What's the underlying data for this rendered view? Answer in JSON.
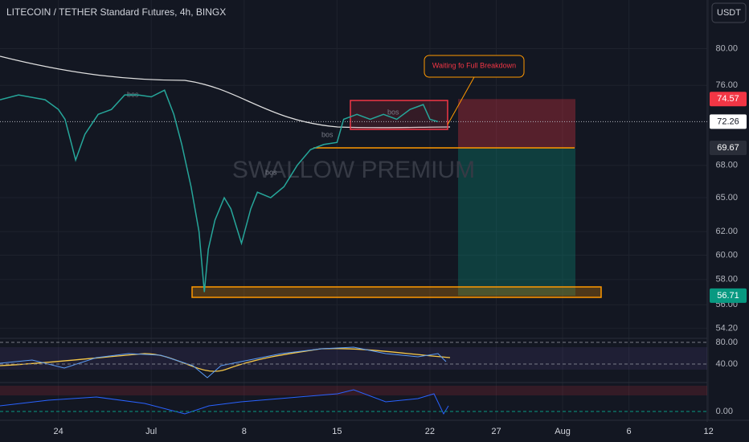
{
  "header": {
    "title": "LITECOIN / TETHER Standard Futures, 4h, BINGX",
    "currency": "USDT"
  },
  "chart_data": {
    "type": "line",
    "log_scale": true,
    "color": "#26a69a",
    "x": [
      -4.4,
      -3,
      -1,
      0,
      0.5,
      1,
      1.3,
      2,
      3,
      4,
      5,
      6,
      7,
      8,
      8.7,
      9.3,
      10,
      10.6,
      11,
      11.3,
      11.8,
      12.5,
      13,
      13.8,
      14.5,
      15,
      16,
      17,
      18,
      19,
      20,
      21,
      21.5,
      22.5,
      23.5,
      24.5,
      25.5,
      26.5,
      27.5,
      28,
      28.6
    ],
    "values": [
      74.5,
      75,
      74.5,
      73.5,
      72.5,
      70,
      68.5,
      71,
      73,
      73.5,
      75,
      75,
      74.8,
      75.5,
      73,
      70,
      66,
      62,
      57,
      60.5,
      63,
      65,
      64,
      61,
      64,
      65.5,
      65,
      66,
      68,
      69.5,
      70,
      70.2,
      72.5,
      73,
      72.5,
      73,
      72.5,
      73.5,
      74,
      72.5,
      72.26
    ],
    "xlim": [
      -4.4,
      48.9
    ],
    "ylim": [
      53.5,
      85.6
    ],
    "xticks": [
      {
        "value": 0,
        "label": "24"
      },
      {
        "value": 7,
        "label": "Jul"
      },
      {
        "value": 14,
        "label": "8"
      },
      {
        "value": 21,
        "label": "15"
      },
      {
        "value": 28,
        "label": "22"
      },
      {
        "value": 33,
        "label": "27"
      },
      {
        "value": 38,
        "label": "Aug"
      },
      {
        "value": 43,
        "label": "6"
      },
      {
        "value": 49,
        "label": "12"
      }
    ],
    "yticks": [
      {
        "value": 80,
        "label": "80.00"
      },
      {
        "value": 76,
        "label": "76.00"
      },
      {
        "value": 68,
        "label": "68.00"
      },
      {
        "value": 65,
        "label": "65.00"
      },
      {
        "value": 62,
        "label": "62.00"
      },
      {
        "value": 60,
        "label": "60.00"
      },
      {
        "value": 58,
        "label": "58.00"
      },
      {
        "value": 56,
        "label": "56.00"
      },
      {
        "value": 54.2,
        "label": "54.20"
      }
    ],
    "price_labels": [
      {
        "value": 74.57,
        "color": "#f23645"
      },
      {
        "value": 72.26,
        "color": "#ffffff"
      },
      {
        "value": 69.67,
        "color": "#2a2e39"
      },
      {
        "value": 56.71,
        "color": "#089981"
      }
    ],
    "callout": "Waiting fo Full Breakdown",
    "watermark": "SWALLOW PREMIUM",
    "bos_labels": [
      "bos",
      "bos",
      "bos",
      "bos"
    ]
  },
  "indicators": {
    "rsi_ticks": [
      {
        "value": 80,
        "label": "80.00"
      },
      {
        "value": 40,
        "label": "40.00"
      }
    ],
    "osc_ticks": [
      {
        "value": 0,
        "label": "0.00"
      }
    ]
  }
}
